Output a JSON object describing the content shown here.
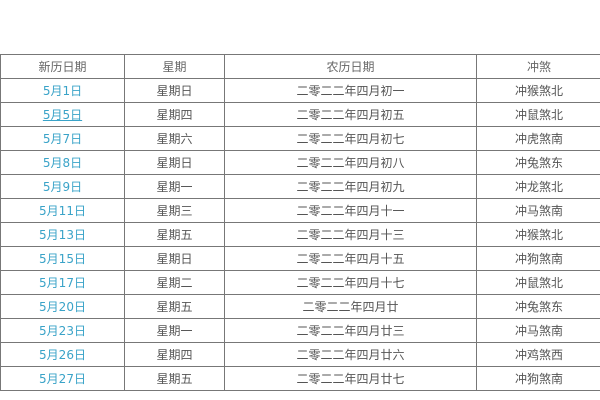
{
  "table": {
    "headers": [
      "新历日期",
      "星期",
      "农历日期",
      "冲煞"
    ],
    "link_color": "#3aa3c8",
    "rows": [
      [
        "5月1日",
        "星期日",
        "二零二二年四月初一",
        "冲猴煞北"
      ],
      [
        "5月5日",
        "星期四",
        "二零二二年四月初五",
        "冲鼠煞北"
      ],
      [
        "5月7日",
        "星期六",
        "二零二二年四月初七",
        "冲虎煞南"
      ],
      [
        "5月8日",
        "星期日",
        "二零二二年四月初八",
        "冲兔煞东"
      ],
      [
        "5月9日",
        "星期一",
        "二零二二年四月初九",
        "冲龙煞北"
      ],
      [
        "5月11日",
        "星期三",
        "二零二二年四月十一",
        "冲马煞南"
      ],
      [
        "5月13日",
        "星期五",
        "二零二二年四月十三",
        "冲猴煞北"
      ],
      [
        "5月15日",
        "星期日",
        "二零二二年四月十五",
        "冲狗煞南"
      ],
      [
        "5月17日",
        "星期二",
        "二零二二年四月十七",
        "冲鼠煞北"
      ],
      [
        "5月20日",
        "星期五",
        "二零二二年四月廿",
        "冲兔煞东"
      ],
      [
        "5月23日",
        "星期一",
        "二零二二年四月廿三",
        "冲马煞南"
      ],
      [
        "5月26日",
        "星期四",
        "二零二二年四月廿六",
        "冲鸡煞西"
      ],
      [
        "5月27日",
        "星期五",
        "二零二二年四月廿七",
        "冲狗煞南"
      ]
    ]
  }
}
